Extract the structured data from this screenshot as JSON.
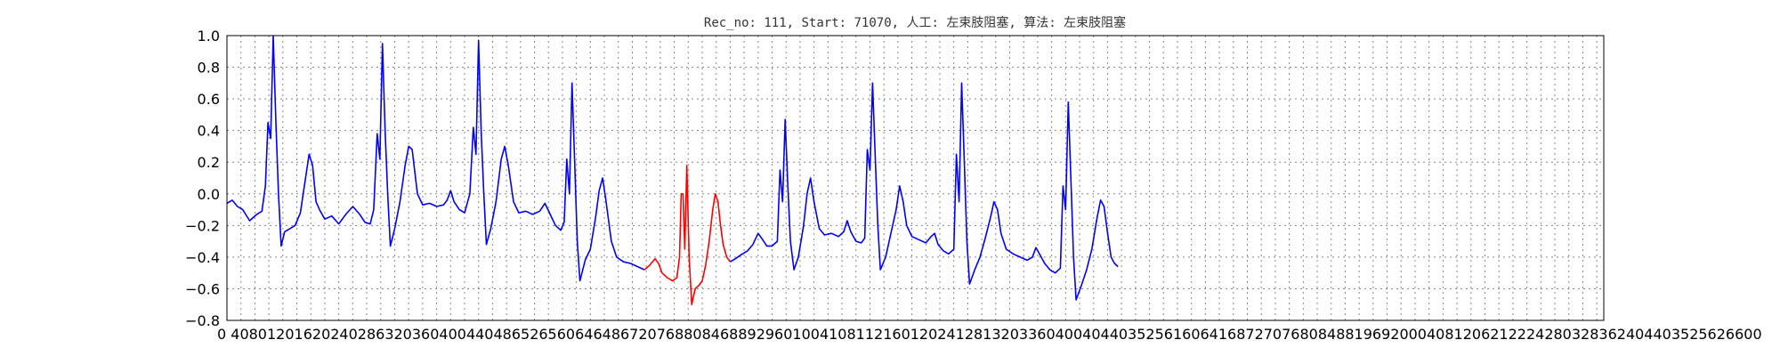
{
  "chart_data": {
    "type": "line",
    "title": "Rec_no: 111, Start: 71070, 人工: 左束肢阻塞, 算法: 左束肢阻塞",
    "xlabel": "",
    "ylabel": "",
    "xlim": [
      0,
      7880
    ],
    "ylim": [
      -0.8,
      1.0
    ],
    "grid": true,
    "y_ticks": [
      "1.0",
      "0.8",
      "0.6",
      "0.4",
      "0.2",
      "0.0",
      "−0.2",
      "−0.4",
      "−0.6",
      "−0.8"
    ],
    "x_tick_text": "0 4080120162024028632036040044048652656064648672076880846889296010041081121601202412813203360400404403525616064168727076808488196920004081206212224280328362404403525626600",
    "colors": {
      "normal": "#0000ff",
      "highlight": "#ff0000"
    },
    "segments": [
      {
        "color": "#0000ff",
        "points": [
          [
            0,
            -0.06
          ],
          [
            30,
            -0.04
          ],
          [
            60,
            -0.08
          ],
          [
            90,
            -0.1
          ],
          [
            130,
            -0.17
          ],
          [
            170,
            -0.13
          ],
          [
            200,
            -0.11
          ],
          [
            220,
            0.05
          ],
          [
            235,
            0.45
          ],
          [
            250,
            0.35
          ],
          [
            265,
            1.0
          ],
          [
            280,
            0.45
          ],
          [
            295,
            0.0
          ],
          [
            310,
            -0.33
          ],
          [
            330,
            -0.24
          ],
          [
            360,
            -0.22
          ],
          [
            390,
            -0.2
          ],
          [
            420,
            -0.12
          ],
          [
            450,
            0.1
          ],
          [
            470,
            0.25
          ],
          [
            490,
            0.18
          ],
          [
            510,
            -0.05
          ],
          [
            530,
            -0.1
          ],
          [
            560,
            -0.16
          ],
          [
            600,
            -0.14
          ],
          [
            640,
            -0.19
          ],
          [
            680,
            -0.13
          ],
          [
            720,
            -0.08
          ],
          [
            760,
            -0.13
          ],
          [
            790,
            -0.18
          ],
          [
            820,
            -0.19
          ],
          [
            840,
            -0.1
          ],
          [
            860,
            0.38
          ],
          [
            875,
            0.22
          ],
          [
            890,
            0.95
          ],
          [
            905,
            0.4
          ],
          [
            920,
            0.0
          ],
          [
            935,
            -0.33
          ],
          [
            960,
            -0.22
          ],
          [
            990,
            -0.05
          ],
          [
            1020,
            0.18
          ],
          [
            1040,
            0.3
          ],
          [
            1060,
            0.28
          ],
          [
            1090,
            0.0
          ],
          [
            1120,
            -0.07
          ],
          [
            1160,
            -0.06
          ],
          [
            1200,
            -0.08
          ],
          [
            1240,
            -0.07
          ],
          [
            1260,
            -0.04
          ],
          [
            1280,
            0.02
          ],
          [
            1300,
            -0.05
          ],
          [
            1330,
            -0.1
          ],
          [
            1360,
            -0.12
          ],
          [
            1390,
            0.0
          ],
          [
            1410,
            0.42
          ],
          [
            1425,
            0.25
          ],
          [
            1440,
            0.97
          ],
          [
            1455,
            0.4
          ],
          [
            1470,
            0.0
          ],
          [
            1485,
            -0.32
          ],
          [
            1510,
            -0.22
          ],
          [
            1540,
            -0.05
          ],
          [
            1570,
            0.22
          ],
          [
            1590,
            0.3
          ],
          [
            1610,
            0.18
          ],
          [
            1640,
            -0.05
          ],
          [
            1670,
            -0.12
          ],
          [
            1710,
            -0.11
          ],
          [
            1750,
            -0.13
          ],
          [
            1790,
            -0.11
          ],
          [
            1820,
            -0.06
          ],
          [
            1850,
            -0.13
          ],
          [
            1880,
            -0.2
          ],
          [
            1910,
            -0.23
          ],
          [
            1930,
            -0.18
          ],
          [
            1945,
            0.22
          ],
          [
            1960,
            0.0
          ],
          [
            1975,
            0.7
          ],
          [
            1990,
            0.2
          ],
          [
            2005,
            -0.3
          ],
          [
            2020,
            -0.55
          ],
          [
            2050,
            -0.42
          ],
          [
            2080,
            -0.35
          ],
          [
            2110,
            -0.15
          ],
          [
            2130,
            0.02
          ],
          [
            2150,
            0.1
          ],
          [
            2170,
            -0.05
          ],
          [
            2200,
            -0.3
          ],
          [
            2230,
            -0.4
          ],
          [
            2270,
            -0.43
          ],
          [
            2310,
            -0.44
          ],
          [
            2350,
            -0.46
          ],
          [
            2390,
            -0.48
          ]
        ]
      },
      {
        "color": "#ff0000",
        "points": [
          [
            2390,
            -0.48
          ],
          [
            2420,
            -0.45
          ],
          [
            2450,
            -0.41
          ],
          [
            2470,
            -0.44
          ],
          [
            2490,
            -0.5
          ],
          [
            2520,
            -0.53
          ],
          [
            2550,
            -0.55
          ],
          [
            2575,
            -0.53
          ],
          [
            2590,
            -0.4
          ],
          [
            2600,
            0.0
          ],
          [
            2610,
            0.0
          ],
          [
            2620,
            -0.35
          ],
          [
            2632,
            0.18
          ],
          [
            2645,
            -0.4
          ],
          [
            2660,
            -0.7
          ],
          [
            2680,
            -0.6
          ],
          [
            2700,
            -0.58
          ],
          [
            2720,
            -0.55
          ],
          [
            2740,
            -0.45
          ],
          [
            2760,
            -0.3
          ],
          [
            2780,
            -0.1
          ],
          [
            2795,
            0.0
          ],
          [
            2810,
            -0.05
          ],
          [
            2825,
            -0.2
          ],
          [
            2840,
            -0.32
          ],
          [
            2860,
            -0.4
          ],
          [
            2880,
            -0.43
          ]
        ]
      },
      {
        "color": "#0000ff",
        "points": [
          [
            2880,
            -0.43
          ],
          [
            2910,
            -0.41
          ],
          [
            2950,
            -0.38
          ],
          [
            2980,
            -0.36
          ],
          [
            3010,
            -0.32
          ],
          [
            3040,
            -0.25
          ],
          [
            3060,
            -0.28
          ],
          [
            3090,
            -0.33
          ],
          [
            3120,
            -0.33
          ],
          [
            3150,
            -0.3
          ],
          [
            3165,
            0.15
          ],
          [
            3180,
            -0.05
          ],
          [
            3195,
            0.47
          ],
          [
            3210,
            0.05
          ],
          [
            3225,
            -0.3
          ],
          [
            3245,
            -0.48
          ],
          [
            3270,
            -0.4
          ],
          [
            3300,
            -0.2
          ],
          [
            3320,
            0.0
          ],
          [
            3340,
            0.1
          ],
          [
            3360,
            -0.05
          ],
          [
            3390,
            -0.22
          ],
          [
            3420,
            -0.26
          ],
          [
            3460,
            -0.25
          ],
          [
            3500,
            -0.27
          ],
          [
            3530,
            -0.24
          ],
          [
            3550,
            -0.17
          ],
          [
            3570,
            -0.24
          ],
          [
            3600,
            -0.3
          ],
          [
            3630,
            -0.31
          ],
          [
            3650,
            -0.28
          ],
          [
            3665,
            0.28
          ],
          [
            3680,
            0.15
          ],
          [
            3695,
            0.7
          ],
          [
            3710,
            0.25
          ],
          [
            3725,
            -0.2
          ],
          [
            3740,
            -0.48
          ],
          [
            3770,
            -0.4
          ],
          [
            3800,
            -0.25
          ],
          [
            3830,
            -0.1
          ],
          [
            3850,
            0.05
          ],
          [
            3870,
            -0.05
          ],
          [
            3890,
            -0.2
          ],
          [
            3920,
            -0.27
          ],
          [
            3960,
            -0.29
          ],
          [
            4000,
            -0.31
          ],
          [
            4030,
            -0.27
          ],
          [
            4050,
            -0.25
          ],
          [
            4070,
            -0.32
          ],
          [
            4100,
            -0.36
          ],
          [
            4130,
            -0.38
          ],
          [
            4160,
            -0.35
          ],
          [
            4175,
            0.25
          ],
          [
            4190,
            -0.05
          ],
          [
            4205,
            0.7
          ],
          [
            4220,
            0.2
          ],
          [
            4235,
            -0.3
          ],
          [
            4250,
            -0.57
          ],
          [
            4280,
            -0.48
          ],
          [
            4310,
            -0.4
          ],
          [
            4340,
            -0.28
          ],
          [
            4370,
            -0.15
          ],
          [
            4390,
            -0.05
          ],
          [
            4410,
            -0.1
          ],
          [
            4430,
            -0.25
          ],
          [
            4460,
            -0.35
          ],
          [
            4500,
            -0.38
          ],
          [
            4540,
            -0.4
          ],
          [
            4580,
            -0.42
          ],
          [
            4610,
            -0.4
          ],
          [
            4630,
            -0.34
          ],
          [
            4650,
            -0.38
          ],
          [
            4680,
            -0.44
          ],
          [
            4710,
            -0.48
          ],
          [
            4740,
            -0.5
          ],
          [
            4770,
            -0.47
          ],
          [
            4785,
            0.05
          ],
          [
            4800,
            -0.1
          ],
          [
            4815,
            0.58
          ],
          [
            4830,
            0.1
          ],
          [
            4845,
            -0.4
          ],
          [
            4860,
            -0.67
          ],
          [
            4890,
            -0.58
          ],
          [
            4920,
            -0.48
          ],
          [
            4950,
            -0.35
          ],
          [
            4980,
            -0.15
          ],
          [
            5000,
            -0.04
          ],
          [
            5020,
            -0.08
          ],
          [
            5040,
            -0.25
          ],
          [
            5060,
            -0.4
          ],
          [
            5080,
            -0.44
          ],
          [
            5100,
            -0.46
          ]
        ]
      }
    ]
  }
}
